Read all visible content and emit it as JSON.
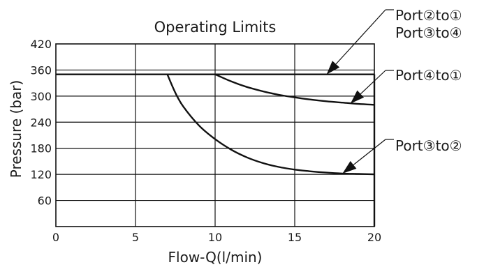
{
  "chart_data": {
    "type": "line",
    "title": "Operating Limits",
    "xlabel": "Flow-Q(l/min)",
    "ylabel": "Pressure (bar)",
    "xlim": [
      0,
      20
    ],
    "ylim": [
      0,
      420
    ],
    "x_ticks": [
      0,
      5,
      10,
      15,
      20
    ],
    "y_ticks": [
      60,
      120,
      180,
      240,
      300,
      360,
      420
    ],
    "grid": true,
    "series": [
      {
        "name": "Port②to① Port③to④",
        "x": [
          0,
          5,
          10,
          15,
          20
        ],
        "y": [
          350,
          350,
          350,
          350,
          350
        ]
      },
      {
        "name": "Port④to①",
        "x": [
          10,
          11,
          12,
          13,
          14,
          15,
          16,
          17,
          18,
          19,
          20
        ],
        "y": [
          350,
          334,
          321,
          311,
          303,
          297,
          292,
          288,
          285,
          282,
          280
        ]
      },
      {
        "name": "Port③to②",
        "x": [
          7,
          7.5,
          8,
          9,
          10,
          11,
          12,
          13,
          14,
          15,
          16,
          17,
          18,
          19,
          20
        ],
        "y": [
          350,
          308,
          276,
          232,
          201,
          177,
          159,
          146,
          137,
          131,
          127,
          124,
          122,
          121,
          120
        ]
      }
    ],
    "annotations": [
      {
        "lines": [
          "Port②to①",
          "Port③to④"
        ],
        "points_to": {
          "x": 17,
          "y": 350
        }
      },
      {
        "lines": [
          "Port④to①"
        ],
        "points_to": {
          "x": 18.5,
          "y": 283
        }
      },
      {
        "lines": [
          "Port③to②"
        ],
        "points_to": {
          "x": 18,
          "y": 122
        }
      }
    ]
  }
}
